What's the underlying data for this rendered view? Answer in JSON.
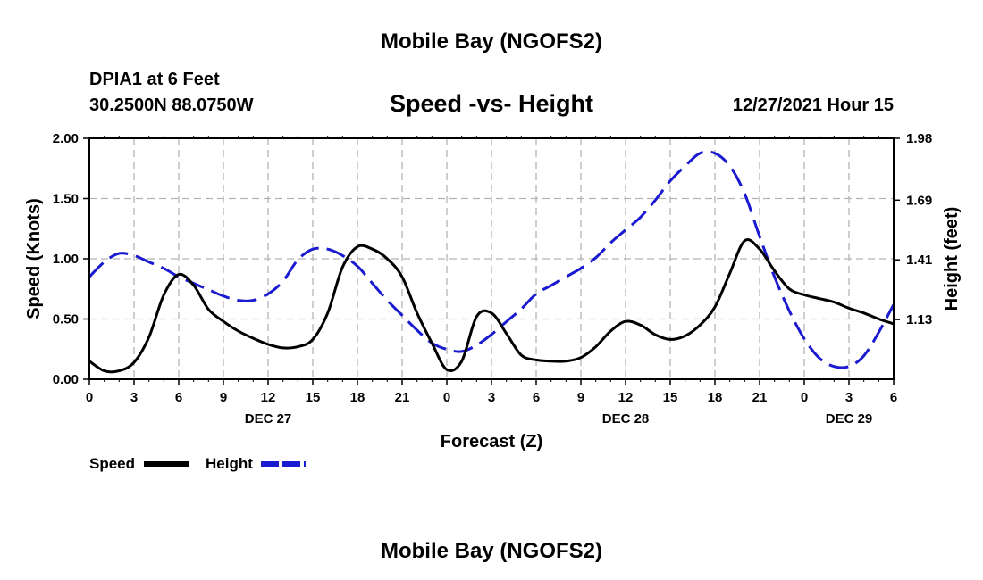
{
  "page": {
    "title": "Mobile Bay (NGOFS2)",
    "bottom_title": "Mobile Bay (NGOFS2)",
    "station": "DPIA1 at 6 Feet",
    "location": "30.2500N  88.0750W",
    "datetime": "12/27/2021 Hour 15"
  },
  "colors": {
    "speed": "#000000",
    "height": "#1a1ad0",
    "grid": "#b3b3b3"
  },
  "chart_data": {
    "type": "line",
    "title": "Speed -vs- Height",
    "xlabel": "Forecast (Z)",
    "ylabel_left": "Speed (Knots)",
    "ylabel_right": "Height (feet)",
    "x_range_hours": [
      0,
      54
    ],
    "ylim_left": [
      0,
      2
    ],
    "ylim_right": [
      0.85,
      1.98
    ],
    "x_tick_hours": [
      0,
      3,
      6,
      9,
      12,
      15,
      18,
      21,
      24,
      27,
      30,
      33,
      36,
      39,
      42,
      45,
      48,
      51,
      54
    ],
    "x_tick_labels": [
      "0",
      "3",
      "6",
      "9",
      "12",
      "15",
      "18",
      "21",
      "0",
      "3",
      "6",
      "9",
      "12",
      "15",
      "18",
      "21",
      "0",
      "3",
      "6"
    ],
    "day_labels": [
      {
        "hour": 12,
        "label": "DEC 27"
      },
      {
        "hour": 36,
        "label": "DEC 28"
      },
      {
        "hour": 51,
        "label": "DEC 29"
      }
    ],
    "y_left_ticks": [
      0,
      0.5,
      1.0,
      1.5,
      2.0
    ],
    "y_left_labels": [
      "0.00",
      "0.50",
      "1.00",
      "1.50",
      "2.00"
    ],
    "y_right_ticks": [
      1.13,
      1.41,
      1.69,
      1.98
    ],
    "y_right_labels": [
      "1.13",
      "1.41",
      "1.69",
      "1.98"
    ],
    "legend": [
      {
        "name": "Speed",
        "style": "solid"
      },
      {
        "name": "Height",
        "style": "dashed"
      }
    ],
    "series": [
      {
        "name": "Speed",
        "axis": "left",
        "x": [
          0,
          1,
          2,
          3,
          4,
          5,
          6,
          7,
          8,
          9,
          10,
          11,
          12,
          13,
          14,
          15,
          16,
          17,
          18,
          19,
          20,
          21,
          22,
          23,
          24,
          25,
          26,
          27,
          28,
          29,
          30,
          31,
          32,
          33,
          34,
          35,
          36,
          37,
          38,
          39,
          40,
          41,
          42,
          43,
          44,
          45,
          46,
          47,
          48,
          49,
          50,
          51,
          52,
          53,
          54
        ],
        "values": [
          0.15,
          0.07,
          0.07,
          0.14,
          0.35,
          0.7,
          0.87,
          0.78,
          0.58,
          0.48,
          0.4,
          0.34,
          0.29,
          0.26,
          0.27,
          0.33,
          0.55,
          0.93,
          1.1,
          1.08,
          1.0,
          0.85,
          0.55,
          0.3,
          0.08,
          0.15,
          0.52,
          0.55,
          0.38,
          0.2,
          0.16,
          0.15,
          0.15,
          0.18,
          0.27,
          0.4,
          0.48,
          0.45,
          0.37,
          0.33,
          0.36,
          0.45,
          0.6,
          0.88,
          1.15,
          1.08,
          0.9,
          0.75,
          0.7,
          0.67,
          0.64,
          0.59,
          0.55,
          0.5,
          0.46
        ]
      },
      {
        "name": "Height",
        "axis": "right",
        "x": [
          0,
          1,
          2,
          3,
          4,
          5,
          6,
          7,
          8,
          9,
          10,
          11,
          12,
          13,
          14,
          15,
          16,
          17,
          18,
          19,
          20,
          21,
          22,
          23,
          24,
          25,
          26,
          27,
          28,
          29,
          30,
          31,
          32,
          33,
          34,
          35,
          36,
          37,
          38,
          39,
          40,
          41,
          42,
          43,
          44,
          45,
          46,
          47,
          48,
          49,
          50,
          51,
          52,
          53,
          54
        ],
        "values": [
          1.33,
          1.4,
          1.44,
          1.43,
          1.4,
          1.37,
          1.33,
          1.3,
          1.27,
          1.24,
          1.22,
          1.22,
          1.25,
          1.31,
          1.41,
          1.46,
          1.46,
          1.43,
          1.38,
          1.3,
          1.22,
          1.15,
          1.08,
          1.02,
          0.99,
          0.98,
          1.01,
          1.06,
          1.12,
          1.18,
          1.25,
          1.29,
          1.33,
          1.37,
          1.42,
          1.49,
          1.55,
          1.61,
          1.69,
          1.78,
          1.85,
          1.91,
          1.91,
          1.85,
          1.72,
          1.52,
          1.33,
          1.17,
          1.04,
          0.95,
          0.91,
          0.91,
          0.96,
          1.07,
          1.2
        ]
      }
    ]
  }
}
